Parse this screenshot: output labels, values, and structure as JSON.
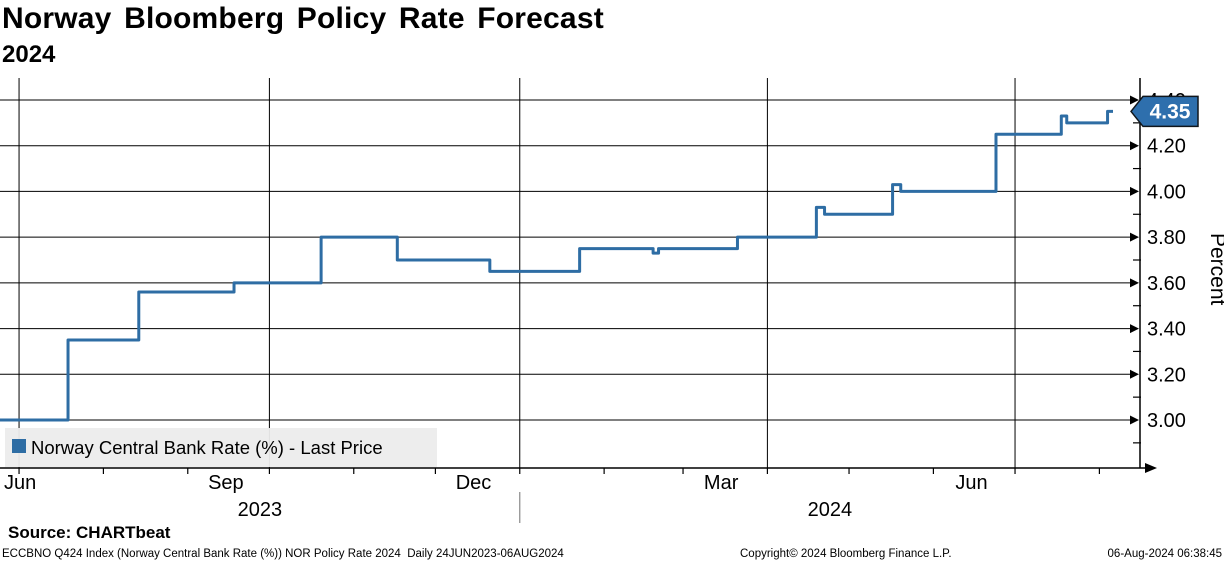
{
  "header": {
    "title": "Norway Bloomberg Policy Rate Forecast",
    "subtitle": "2024"
  },
  "source_line": "Source: CHARTbeat",
  "footer": {
    "left": "ECCBNO Q424 Index (Norway Central Bank Rate (%)) NOR Policy Rate 2024  Daily 24JUN2023-06AUG2024",
    "center": "Copyright© 2024 Bloomberg Finance L.P.",
    "right": "06-Aug-2024 06:38:45"
  },
  "last_price_badge": {
    "value": "4.35",
    "bg": "#2e6fad",
    "border": "#10161c",
    "text_color": "#ffffff"
  },
  "chart_data": {
    "type": "line",
    "step": true,
    "title": "Norway Bloomberg Policy Rate Forecast",
    "subtitle": "2024",
    "xlabel": "",
    "ylabel": "Percent",
    "x_range": [
      "2023-06-24",
      "2024-08-06"
    ],
    "ylim": [
      2.79,
      4.5
    ],
    "grid": true,
    "legend_position": "bottom-left",
    "line_color": "#2e6da4",
    "grid_color": "#000000",
    "y_ticks": [
      "4.40",
      "4.20",
      "4.00",
      "3.80",
      "3.60",
      "3.40",
      "3.20",
      "3.00"
    ],
    "y_minor_ticks": [
      4.3,
      4.1,
      3.9,
      3.7,
      3.5,
      3.3,
      3.1,
      2.9
    ],
    "x_gridline_dates": [
      "2023-07-01",
      "2023-10-01",
      "2024-01-01",
      "2024-04-01",
      "2024-07-01"
    ],
    "x_minor_tick_dates": [
      "2023-07-01",
      "2023-08-01",
      "2023-09-01",
      "2023-10-01",
      "2023-11-01",
      "2023-12-01",
      "2024-01-01",
      "2024-02-01",
      "2024-03-01",
      "2024-04-01",
      "2024-05-01",
      "2024-06-01",
      "2024-07-01",
      "2024-08-01"
    ],
    "x_month_labels": [
      {
        "label": "Jun",
        "date": "2023-06-24",
        "anchor": "start"
      },
      {
        "label": "Sep",
        "date": "2023-09-15",
        "anchor": "middle"
      },
      {
        "label": "Dec",
        "date": "2023-12-15",
        "anchor": "middle"
      },
      {
        "label": "Mar",
        "date": "2024-03-15",
        "anchor": "middle"
      },
      {
        "label": "Jun",
        "date": "2024-06-15",
        "anchor": "middle"
      }
    ],
    "year_separator_date": "2024-01-01",
    "x_year_labels": [
      {
        "label": "2023"
      },
      {
        "label": "2024"
      }
    ],
    "series": [
      {
        "name": "Norway Central Bank Rate (%) - Last Price",
        "color": "#2e6da4",
        "points": [
          [
            "2023-06-24",
            3.0
          ],
          [
            "2023-07-19",
            3.35
          ],
          [
            "2023-08-14",
            3.56
          ],
          [
            "2023-09-18",
            3.6
          ],
          [
            "2023-10-20",
            3.8
          ],
          [
            "2023-11-17",
            3.7
          ],
          [
            "2023-12-21",
            3.65
          ],
          [
            "2024-01-23",
            3.75
          ],
          [
            "2024-02-19",
            3.73
          ],
          [
            "2024-02-21",
            3.75
          ],
          [
            "2024-03-21",
            3.8
          ],
          [
            "2024-04-19",
            3.93
          ],
          [
            "2024-04-22",
            3.9
          ],
          [
            "2024-05-17",
            4.03
          ],
          [
            "2024-05-20",
            4.0
          ],
          [
            "2024-06-24",
            4.25
          ],
          [
            "2024-07-18",
            4.33
          ],
          [
            "2024-07-20",
            4.3
          ],
          [
            "2024-08-04",
            4.35
          ],
          [
            "2024-08-06",
            4.35
          ]
        ]
      }
    ]
  }
}
